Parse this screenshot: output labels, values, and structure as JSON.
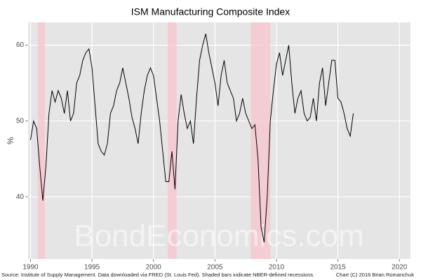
{
  "chart_data": {
    "type": "line",
    "title": "ISM Manufacturing Composite Index",
    "ylabel": "%",
    "source": "Source: Institute of Supply Management. Data downloaded via FRED (St. Louis Fed). Shaded bars indicate NBER-defined recessions.",
    "credit": "Chart (C) 2016 Brian Romanchuk",
    "watermark": "BondEconomics.com",
    "color": "#000000",
    "recession_color": "#f6c9d0",
    "grid": true,
    "xlim": [
      1989.8,
      2020.9
    ],
    "ylim": [
      31.8,
      63
    ],
    "xticks": [
      1990,
      1995,
      2000,
      2005,
      2010,
      2015,
      2020
    ],
    "yticks": [
      40,
      50,
      60
    ],
    "recessions": [
      [
        1990.58,
        1991.17
      ],
      [
        2001.17,
        2001.88
      ],
      [
        2007.92,
        2009.5
      ]
    ],
    "x": [
      1990,
      1990.25,
      1990.5,
      1990.75,
      1991,
      1991.25,
      1991.5,
      1991.75,
      1992,
      1992.25,
      1992.5,
      1992.75,
      1993,
      1993.25,
      1993.5,
      1993.75,
      1994,
      1994.25,
      1994.5,
      1994.75,
      1995,
      1995.25,
      1995.5,
      1995.75,
      1996,
      1996.25,
      1996.5,
      1996.75,
      1997,
      1997.25,
      1997.5,
      1997.75,
      1998,
      1998.25,
      1998.5,
      1998.75,
      1999,
      1999.25,
      1999.5,
      1999.75,
      2000,
      2000.25,
      2000.5,
      2000.75,
      2001,
      2001.25,
      2001.5,
      2001.75,
      2002,
      2002.25,
      2002.5,
      2002.75,
      2003,
      2003.25,
      2003.5,
      2003.75,
      2004,
      2004.25,
      2004.5,
      2004.75,
      2005,
      2005.25,
      2005.5,
      2005.75,
      2006,
      2006.25,
      2006.5,
      2006.75,
      2007,
      2007.25,
      2007.5,
      2007.75,
      2008,
      2008.25,
      2008.5,
      2008.75,
      2009,
      2009.25,
      2009.5,
      2009.75,
      2010,
      2010.25,
      2010.5,
      2010.75,
      2011,
      2011.25,
      2011.5,
      2011.75,
      2012,
      2012.25,
      2012.5,
      2012.75,
      2013,
      2013.25,
      2013.5,
      2013.75,
      2014,
      2014.25,
      2014.5,
      2014.75,
      2015,
      2015.25,
      2015.5,
      2015.75,
      2016,
      2016.25
    ],
    "values": [
      47.5,
      50,
      49,
      44,
      39.5,
      44,
      51,
      54,
      52.5,
      54,
      53,
      51,
      54,
      50,
      51,
      55,
      56,
      58,
      59,
      59.5,
      57,
      52,
      47,
      46,
      45.5,
      47,
      51,
      52,
      54,
      55,
      57,
      55,
      53,
      50.5,
      49,
      47,
      51,
      54,
      56,
      57,
      56,
      53,
      50,
      46,
      42,
      42,
      46,
      41,
      50,
      53.5,
      51,
      49,
      50,
      47,
      53,
      58,
      60,
      61.5,
      59,
      57,
      55,
      52,
      56,
      58,
      55,
      54,
      53,
      50,
      51,
      53,
      51,
      50,
      49,
      49.5,
      45,
      36,
      34,
      40,
      50,
      54,
      57.5,
      59,
      56,
      58,
      60,
      55,
      51,
      53,
      54,
      51,
      50,
      50.5,
      53,
      50,
      55,
      57,
      52,
      55,
      58,
      58,
      53,
      52.5,
      51,
      49,
      48,
      51
    ]
  }
}
